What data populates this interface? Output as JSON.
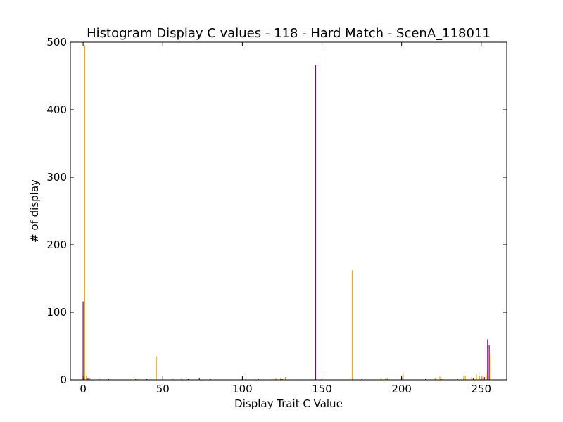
{
  "chart_data": {
    "type": "bar",
    "title": "Histogram Display C values - 118 - Hard Match - ScenA_118011",
    "xlabel": "Display Trait C Value",
    "ylabel": "# of display",
    "xlim": [
      -8,
      266
    ],
    "ylim": [
      0,
      500
    ],
    "xticks": [
      0,
      50,
      100,
      150,
      200,
      250
    ],
    "yticks": [
      0,
      100,
      200,
      300,
      400,
      500
    ],
    "grid": false,
    "legend": "none",
    "colors": {
      "series_a": "#800080",
      "series_b": "#FFA500"
    },
    "series": [
      {
        "color": "#800080",
        "points": [
          {
            "x": 0,
            "y": 116
          },
          {
            "x": 1,
            "y": 5
          },
          {
            "x": 3,
            "y": 3
          },
          {
            "x": 5,
            "y": 2
          },
          {
            "x": 10,
            "y": 1
          },
          {
            "x": 16,
            "y": 1
          },
          {
            "x": 33,
            "y": 1
          },
          {
            "x": 40,
            "y": 1
          },
          {
            "x": 56,
            "y": 1
          },
          {
            "x": 62,
            "y": 2
          },
          {
            "x": 66,
            "y": 1
          },
          {
            "x": 73,
            "y": 2
          },
          {
            "x": 80,
            "y": 1
          },
          {
            "x": 100,
            "y": 1
          },
          {
            "x": 110,
            "y": 1
          },
          {
            "x": 125,
            "y": 1
          },
          {
            "x": 146,
            "y": 466
          },
          {
            "x": 150,
            "y": 1
          },
          {
            "x": 175,
            "y": 1
          },
          {
            "x": 190,
            "y": 1
          },
          {
            "x": 200,
            "y": 2
          },
          {
            "x": 215,
            "y": 1
          },
          {
            "x": 225,
            "y": 1
          },
          {
            "x": 235,
            "y": 1
          },
          {
            "x": 245,
            "y": 2
          },
          {
            "x": 250,
            "y": 3
          },
          {
            "x": 252,
            "y": 4
          },
          {
            "x": 253,
            "y": 4
          },
          {
            "x": 254,
            "y": 60
          },
          {
            "x": 255,
            "y": 52
          }
        ]
      },
      {
        "color": "#FFA500",
        "points": [
          {
            "x": 1,
            "y": 495
          },
          {
            "x": 2,
            "y": 6
          },
          {
            "x": 4,
            "y": 2
          },
          {
            "x": 32,
            "y": 2
          },
          {
            "x": 46,
            "y": 35
          },
          {
            "x": 50,
            "y": 1
          },
          {
            "x": 102,
            "y": 1
          },
          {
            "x": 108,
            "y": 1
          },
          {
            "x": 121,
            "y": 2
          },
          {
            "x": 124,
            "y": 2
          },
          {
            "x": 127,
            "y": 4
          },
          {
            "x": 169,
            "y": 162
          },
          {
            "x": 177,
            "y": 1
          },
          {
            "x": 187,
            "y": 2
          },
          {
            "x": 191,
            "y": 3
          },
          {
            "x": 201,
            "y": 8
          },
          {
            "x": 221,
            "y": 3
          },
          {
            "x": 224,
            "y": 5
          },
          {
            "x": 239,
            "y": 5
          },
          {
            "x": 240,
            "y": 6
          },
          {
            "x": 244,
            "y": 4
          },
          {
            "x": 247,
            "y": 8
          },
          {
            "x": 249,
            "y": 5
          },
          {
            "x": 251,
            "y": 6
          },
          {
            "x": 253,
            "y": 10
          },
          {
            "x": 256,
            "y": 38
          }
        ]
      }
    ]
  }
}
